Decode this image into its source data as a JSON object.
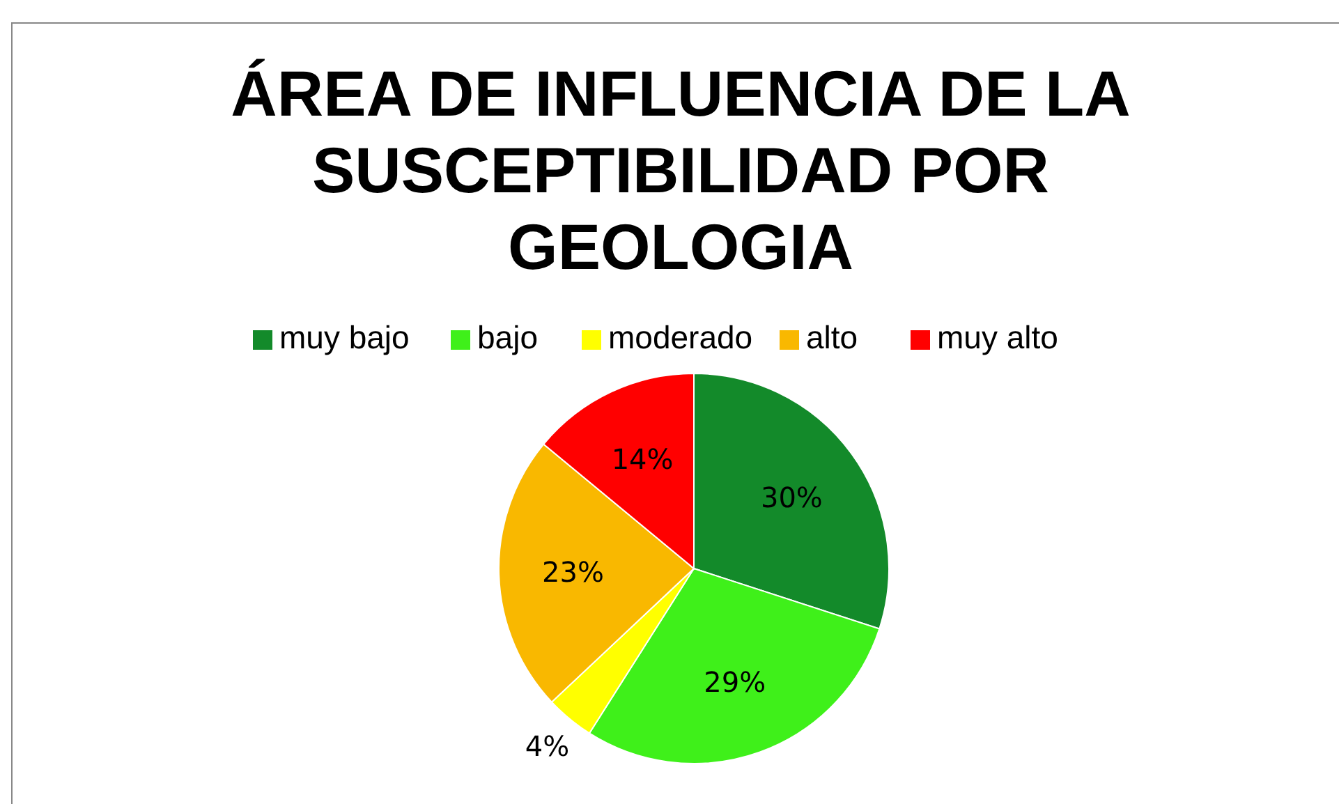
{
  "chart_data": {
    "type": "pie",
    "title": "ÁREA DE INFLUENCIA DE LA SUSCEPTIBILIDAD POR GEOLOGIA",
    "categories": [
      "muy bajo",
      "bajo",
      "moderado",
      "alto",
      "muy alto"
    ],
    "values": [
      30,
      29,
      4,
      23,
      14
    ],
    "colors": [
      "#138a2a",
      "#3ff01a",
      "#ffff00",
      "#f9b800",
      "#ff0000"
    ],
    "value_labels": [
      "30%",
      "29%",
      "4%",
      "23%",
      "14%"
    ],
    "legend": "top"
  }
}
